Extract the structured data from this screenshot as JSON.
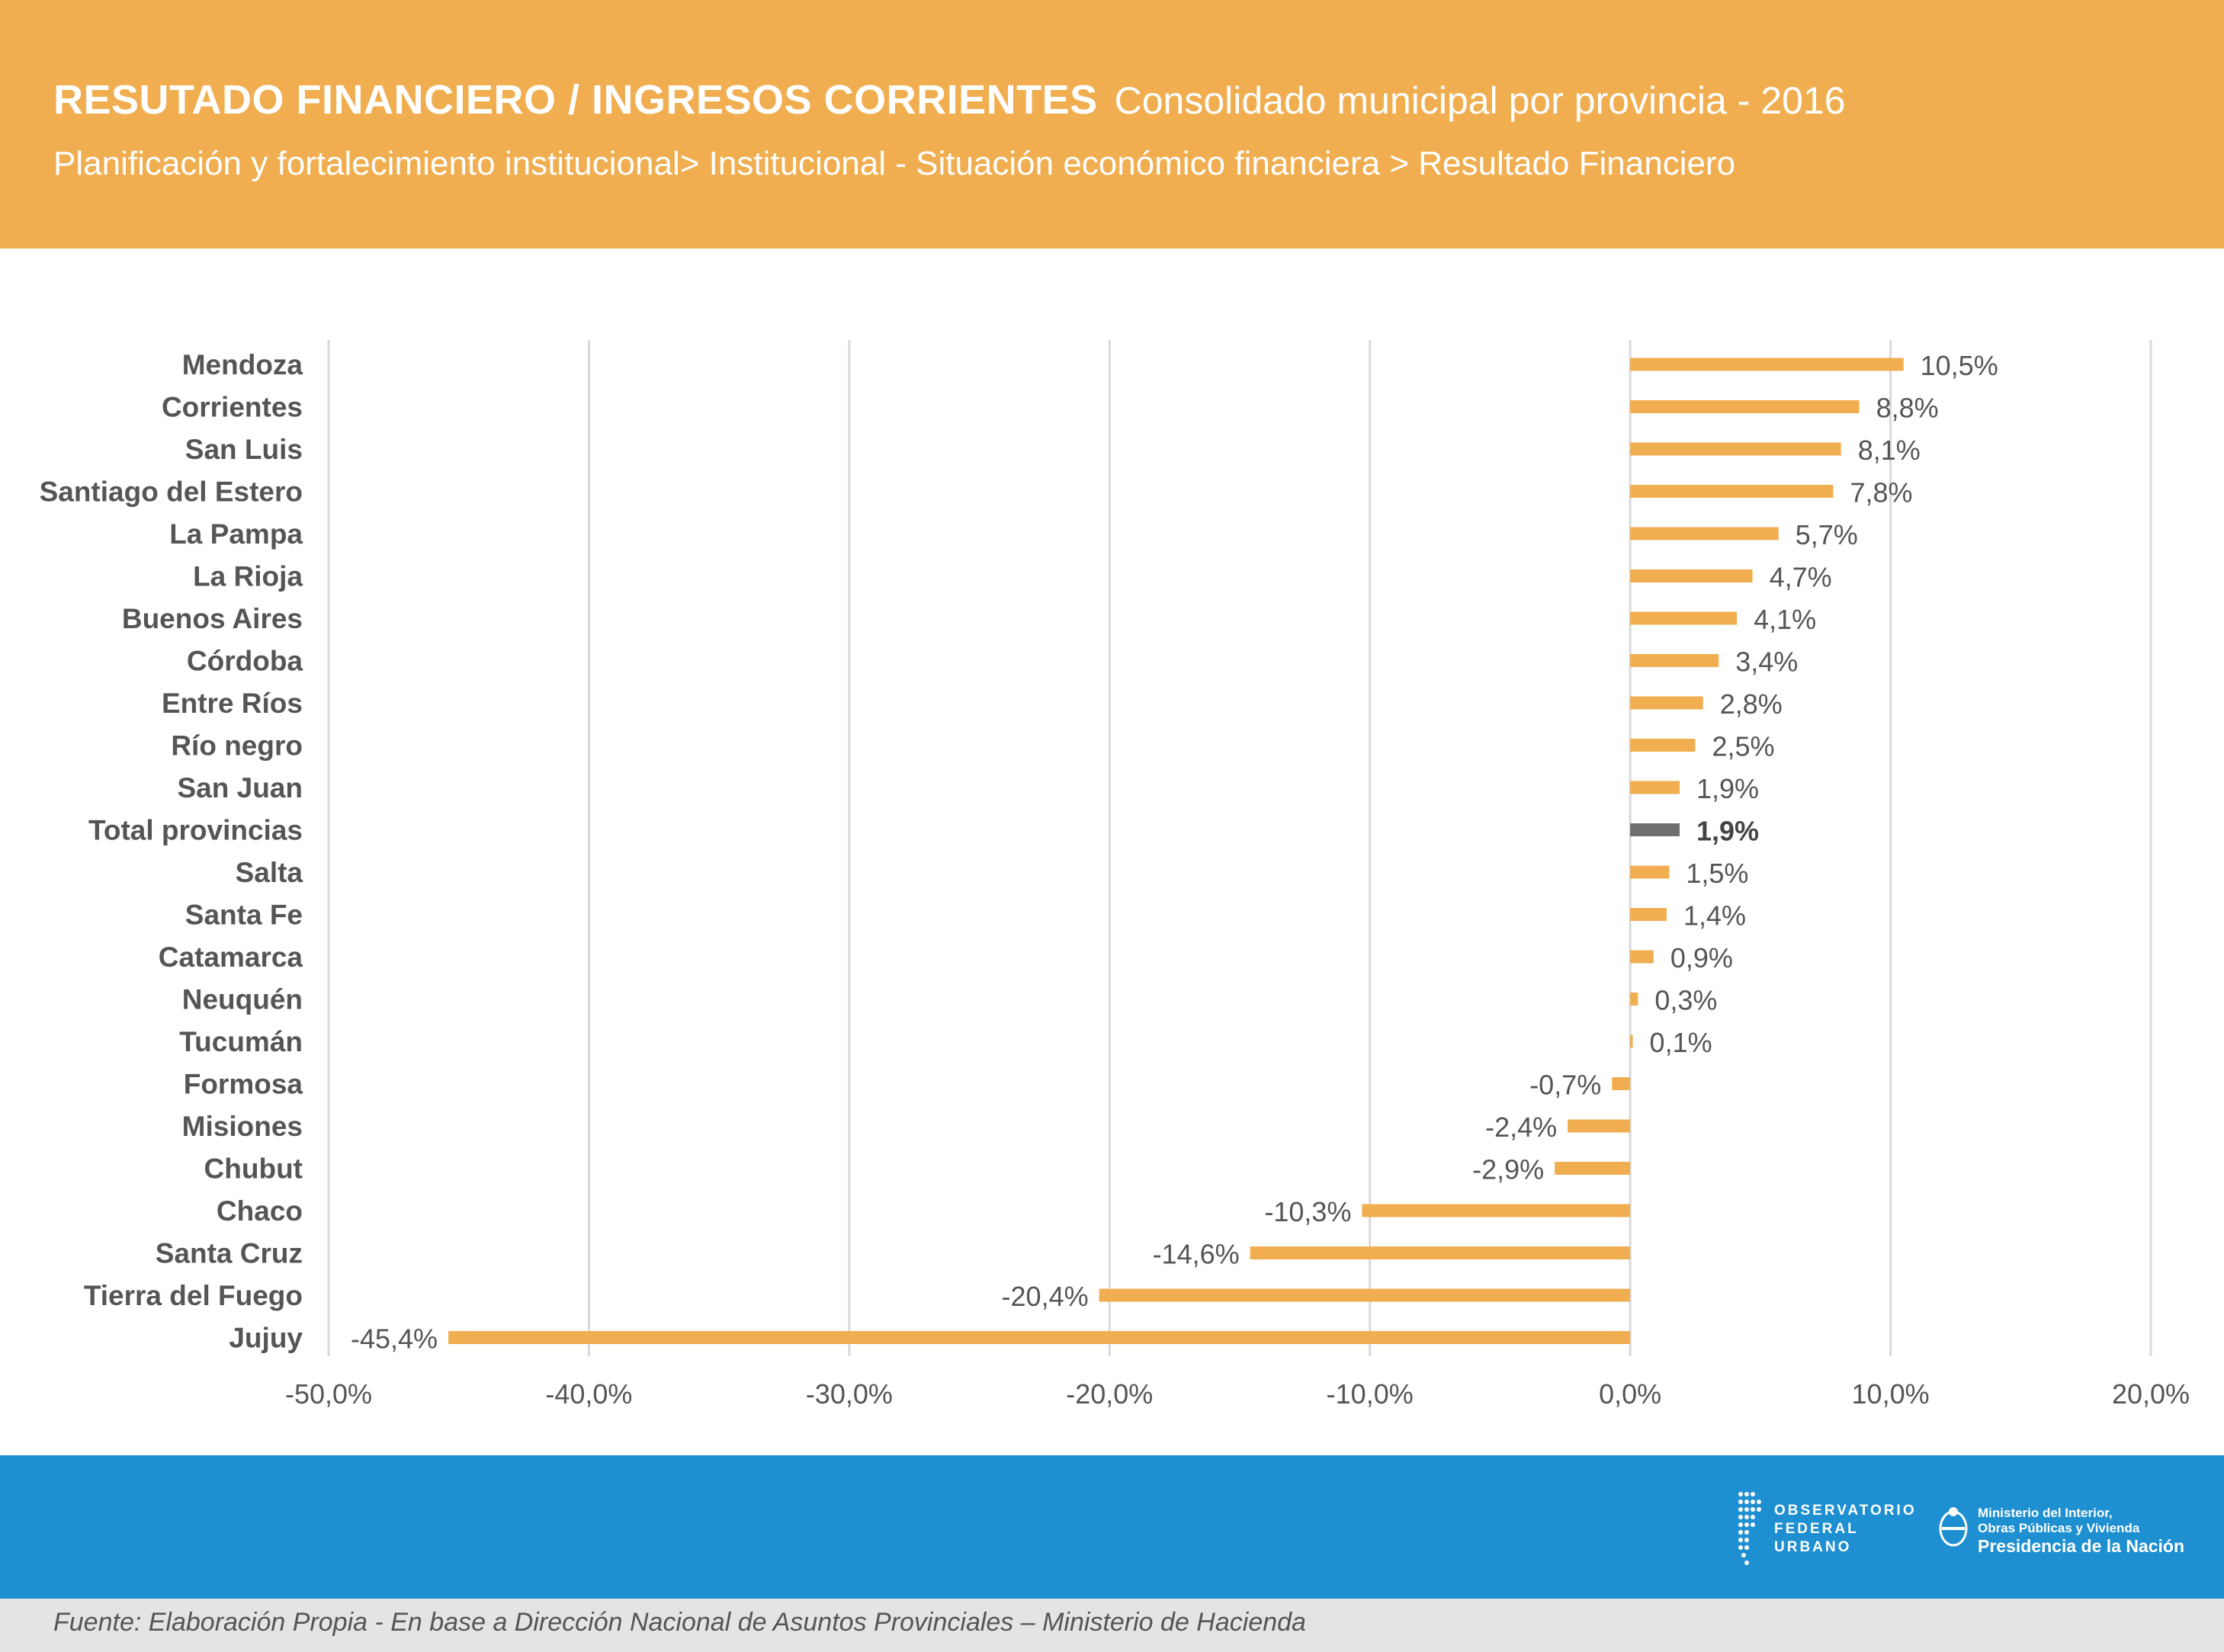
{
  "header": {
    "title": "RESUTADO FINANCIERO / INGRESOS CORRIENTES",
    "subtitle": "Consolidado municipal por provincia -  2016",
    "breadcrumb": "Planificación y fortalecimiento institucional> Institucional - Situación económico financiera > Resultado Financiero"
  },
  "colors": {
    "header_bg": "#f0ae50",
    "bar": "#f0ae50",
    "highlight_bar": "#6f6f6f",
    "footer_bg": "#1e8fd0",
    "source_bg": "#e4e4e4",
    "grid": "#d9d9d9"
  },
  "chart_data": {
    "type": "bar",
    "orientation": "horizontal",
    "title": "",
    "xlabel": "",
    "ylabel": "",
    "xlim": [
      -50,
      20
    ],
    "grid": true,
    "x_ticks": [
      -50,
      -40,
      -30,
      -20,
      -10,
      0,
      10,
      20
    ],
    "x_tick_labels": [
      "-50,0%",
      "-40,0%",
      "-30,0%",
      "-20,0%",
      "-10,0%",
      "0,0%",
      "10,0%",
      "20,0%"
    ],
    "highlight_category": "Total provincias",
    "categories": [
      "Mendoza",
      "Corrientes",
      "San Luis",
      "Santiago del Estero",
      "La Pampa",
      "La Rioja",
      "Buenos Aires",
      "Córdoba",
      "Entre Ríos",
      "Río negro",
      "San Juan",
      "Total provincias",
      "Salta",
      "Santa Fe",
      "Catamarca",
      "Neuquén",
      "Tucumán",
      "Formosa",
      "Misiones",
      "Chubut",
      "Chaco",
      "Santa Cruz",
      "Tierra del Fuego",
      "Jujuy"
    ],
    "values": [
      10.5,
      8.8,
      8.1,
      7.8,
      5.7,
      4.7,
      4.1,
      3.4,
      2.8,
      2.5,
      1.9,
      1.9,
      1.5,
      1.4,
      0.9,
      0.3,
      0.1,
      -0.7,
      -2.4,
      -2.9,
      -10.3,
      -14.6,
      -20.4,
      -45.4
    ],
    "value_labels": [
      "10,5%",
      "8,8%",
      "8,1%",
      "7,8%",
      "5,7%",
      "4,7%",
      "4,1%",
      "3,4%",
      "2,8%",
      "2,5%",
      "1,9%",
      "1,9%",
      "1,5%",
      "1,4%",
      "0,9%",
      "0,3%",
      "0,1%",
      "-0,7%",
      "-2,4%",
      "-2,9%",
      "-10,3%",
      "-14,6%",
      "-20,4%",
      "-45,4%"
    ]
  },
  "footer": {
    "logo1_lines": [
      "OBSERVATORIO",
      "FEDERAL",
      "URBANO"
    ],
    "logo2_line1": "Ministerio del Interior,",
    "logo2_line2": "Obras Públicas y Vivienda",
    "logo2_line3": "Presidencia de la Nación",
    "logo1_icon": "dotted-map-icon",
    "logo2_icon": "coat-of-arms-icon"
  },
  "source": "Fuente: Elaboración Propia - En base  a Dirección Nacional de Asuntos Provinciales – Ministerio de Hacienda"
}
